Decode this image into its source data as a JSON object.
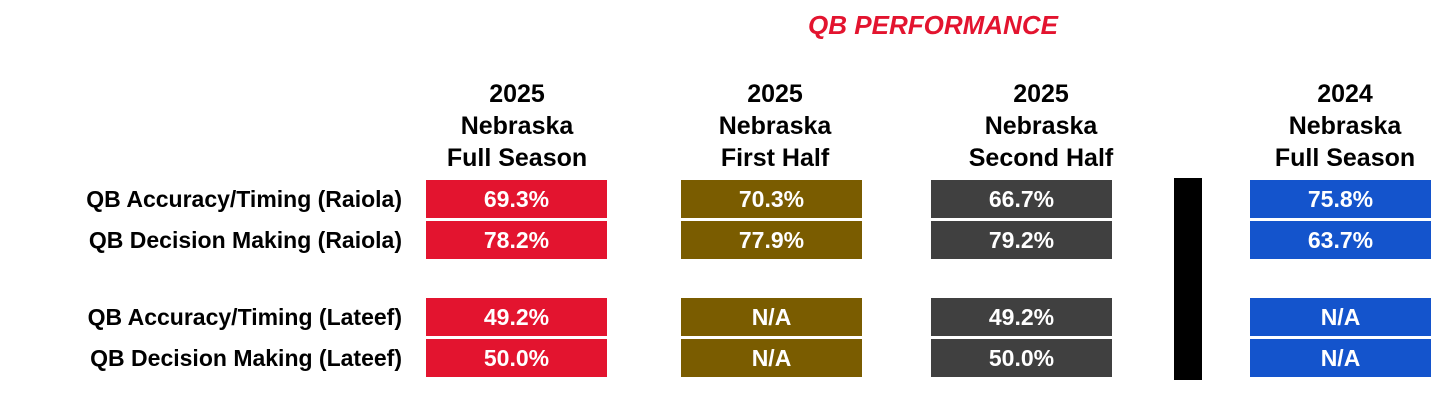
{
  "chart_data": {
    "type": "table",
    "title": "QB PERFORMANCE",
    "columns": [
      {
        "lines": [
          "2025",
          "Nebraska",
          "Full Season"
        ],
        "color": "#e3142f"
      },
      {
        "lines": [
          "2025",
          "Nebraska",
          "First Half"
        ],
        "color": "#7a5c00"
      },
      {
        "lines": [
          "2025",
          "Nebraska",
          "Second Half"
        ],
        "color": "#404040"
      },
      {
        "lines": [
          "2024",
          "Nebraska",
          "Full Season"
        ],
        "color": "#1454cc"
      }
    ],
    "rows": [
      {
        "label": "QB Accuracy/Timing (Raiola)",
        "values": [
          "69.3%",
          "70.3%",
          "66.7%",
          "75.8%"
        ]
      },
      {
        "label": "QB Decision Making (Raiola)",
        "values": [
          "78.2%",
          "77.9%",
          "79.2%",
          "63.7%"
        ]
      },
      {
        "label": "QB Accuracy/Timing (Lateef)",
        "values": [
          "49.2%",
          "N/A",
          "49.2%",
          "N/A"
        ]
      },
      {
        "label": "QB Decision Making (Lateef)",
        "values": [
          "50.0%",
          "N/A",
          "50.0%",
          "N/A"
        ]
      }
    ]
  }
}
